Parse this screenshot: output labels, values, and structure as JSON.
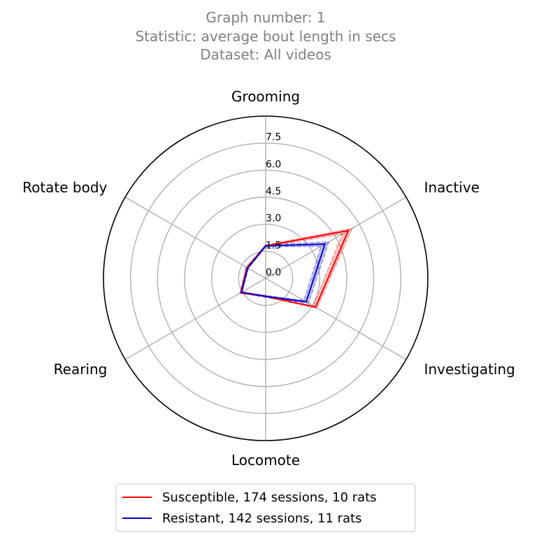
{
  "chart_data": {
    "type": "radar",
    "title_lines": [
      "Graph number: 1",
      "Statistic: average bout length in secs",
      "Dataset: All videos"
    ],
    "categories": [
      "Grooming",
      "Inactive",
      "Investigating",
      "Locomote",
      "Rearing",
      "Rotate body"
    ],
    "r_ticks": [
      "0.0",
      "1.5",
      "3.0",
      "4.5",
      "6.0",
      "7.5"
    ],
    "r_range": [
      0,
      9
    ],
    "grid": true,
    "legend_position": "bottom",
    "series": [
      {
        "name": "Susceptible, 174 sessions, 10 rats",
        "color": "#ff0000",
        "values": [
          1.8,
          5.3,
          3.2,
          1.0,
          1.6,
          1.2
        ],
        "band_low": [
          1.75,
          4.9,
          3.05,
          0.95,
          1.55,
          1.15
        ],
        "band_high": [
          1.85,
          5.55,
          3.3,
          1.05,
          1.65,
          1.25
        ]
      },
      {
        "name": "Resistant, 142 sessions, 11 rats",
        "color": "#0000cc",
        "values": [
          1.8,
          3.8,
          2.6,
          1.0,
          1.55,
          1.15
        ],
        "band_low": [
          1.75,
          3.55,
          2.45,
          0.95,
          1.5,
          1.1
        ],
        "band_high": [
          1.85,
          4.05,
          2.75,
          1.05,
          1.6,
          1.2
        ]
      }
    ]
  }
}
